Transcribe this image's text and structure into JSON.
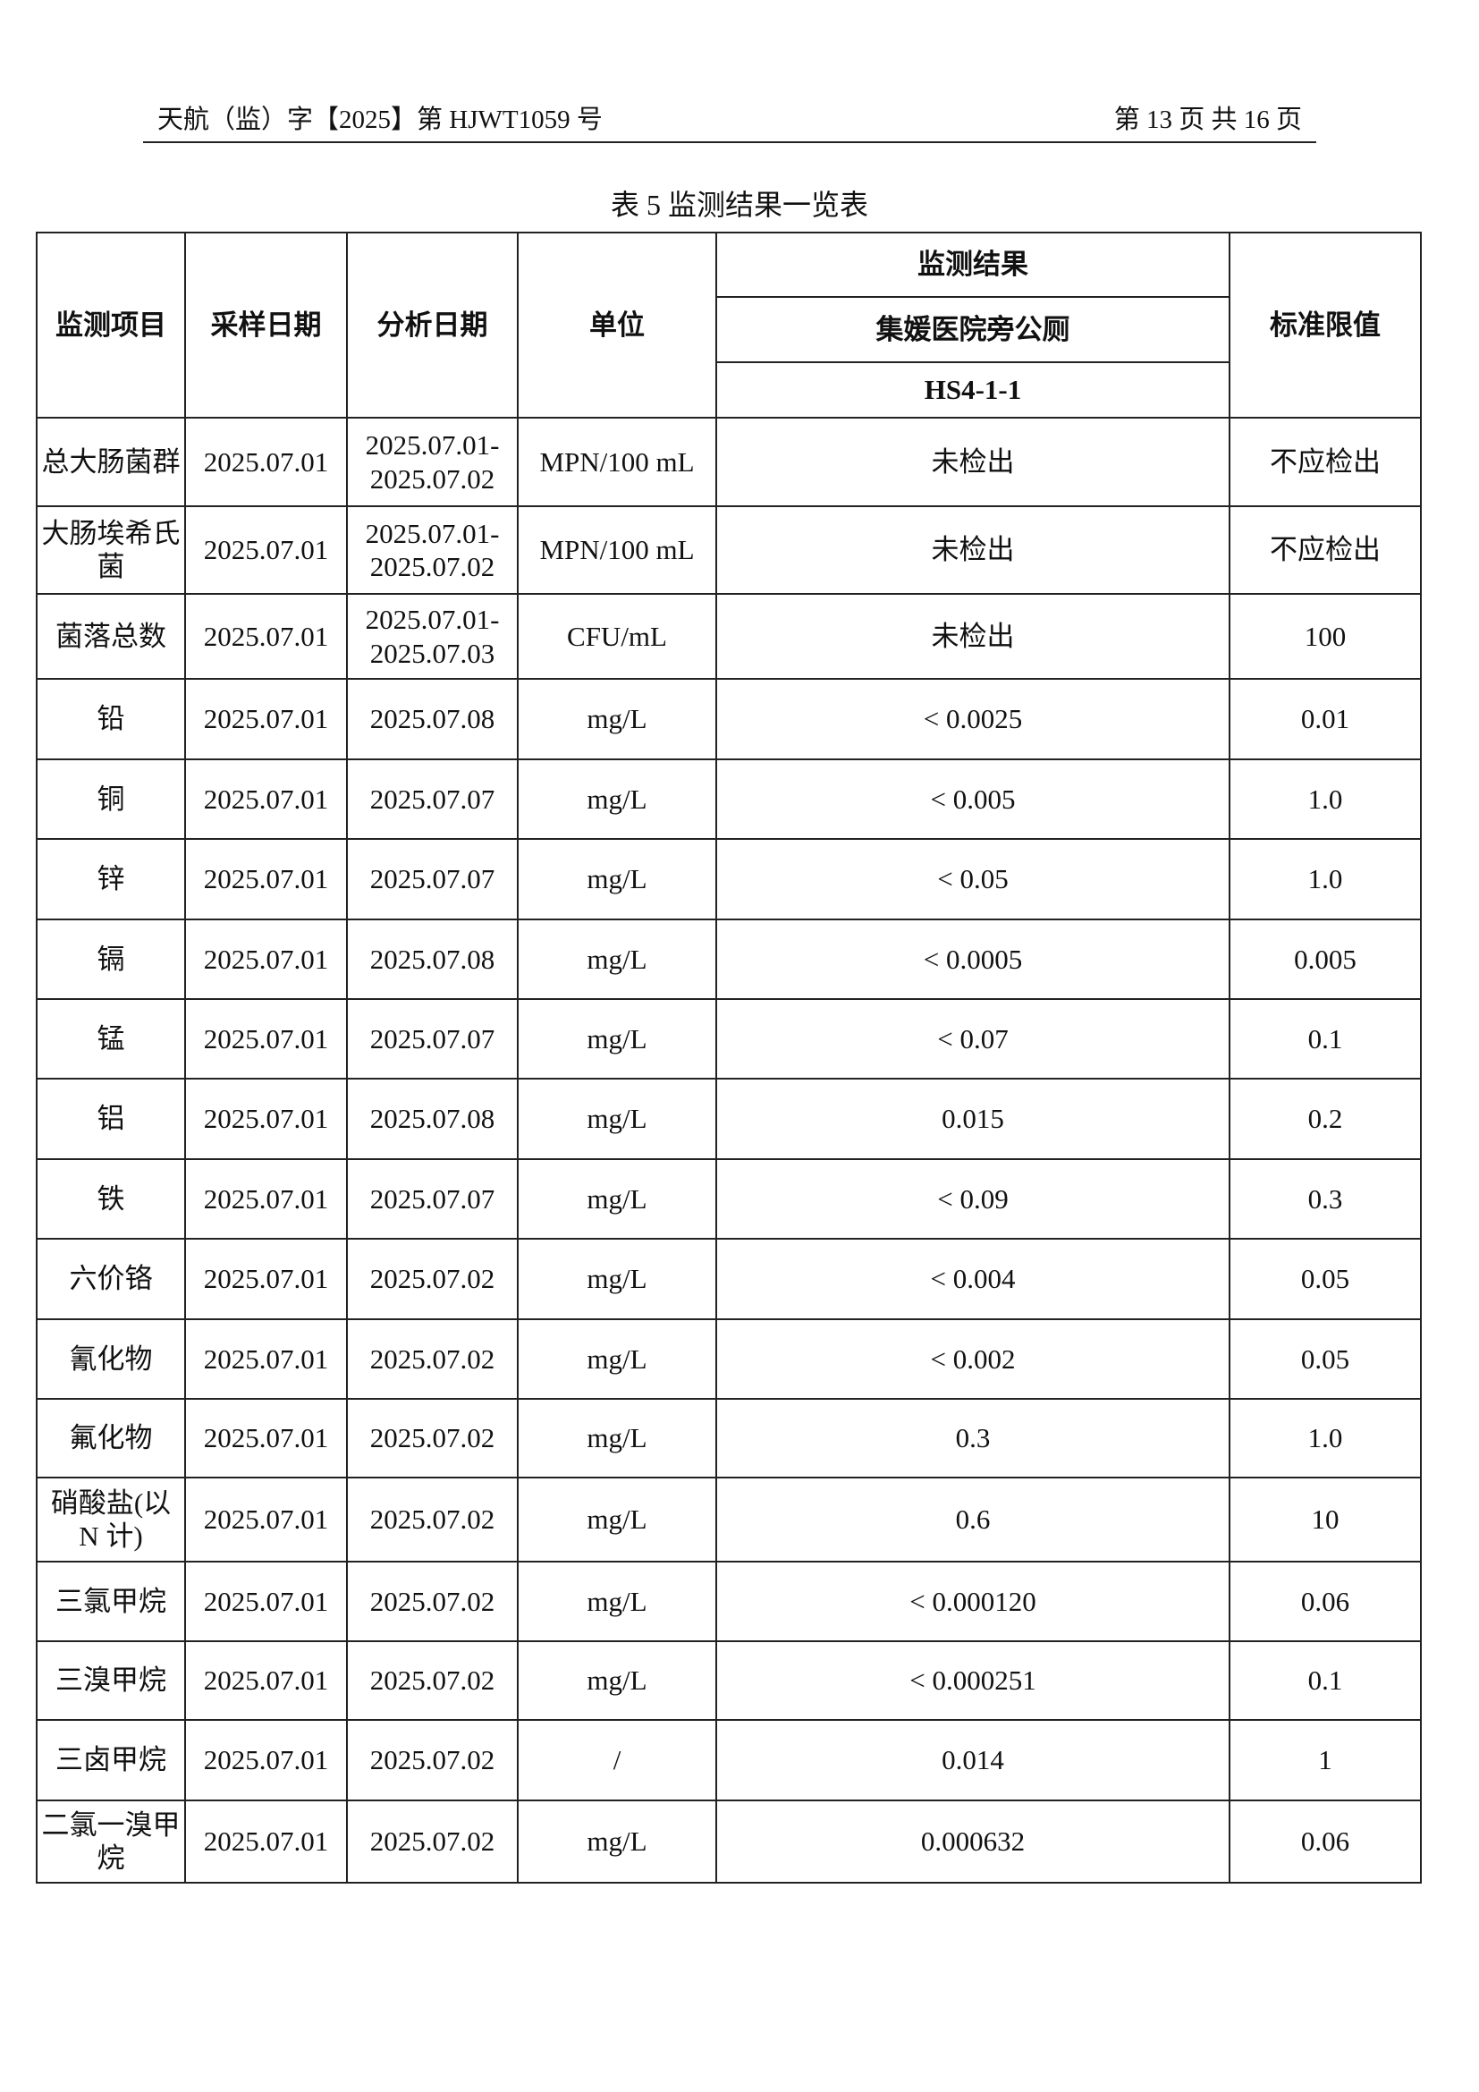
{
  "header": {
    "doc_number": "天航（监）字【2025】第 HJWT1059 号",
    "page_info": "第 13 页 共 16 页"
  },
  "table_title": "表 5  监测结果一览表",
  "table": {
    "columns": {
      "item": "监测项目",
      "sample_date": "采样日期",
      "analysis_date": "分析日期",
      "unit": "单位",
      "result_group": "监测结果",
      "location": "集媛医院旁公厕",
      "sample_id": "HS4-1-1",
      "limit": "标准限值"
    },
    "rows": [
      {
        "item": "总大肠菌群",
        "sample_date": "2025.07.01",
        "analysis_date": "2025.07.01-2025.07.02",
        "unit": "MPN/100 mL",
        "result": "未检出",
        "limit": "不应检出"
      },
      {
        "item": "大肠埃希氏菌",
        "sample_date": "2025.07.01",
        "analysis_date": "2025.07.01-2025.07.02",
        "unit": "MPN/100 mL",
        "result": "未检出",
        "limit": "不应检出"
      },
      {
        "item": "菌落总数",
        "sample_date": "2025.07.01",
        "analysis_date": "2025.07.01-2025.07.03",
        "unit": "CFU/mL",
        "result": "未检出",
        "limit": "100"
      },
      {
        "item": "铅",
        "sample_date": "2025.07.01",
        "analysis_date": "2025.07.08",
        "unit": "mg/L",
        "result": "< 0.0025",
        "limit": "0.01"
      },
      {
        "item": "铜",
        "sample_date": "2025.07.01",
        "analysis_date": "2025.07.07",
        "unit": "mg/L",
        "result": "< 0.005",
        "limit": "1.0"
      },
      {
        "item": "锌",
        "sample_date": "2025.07.01",
        "analysis_date": "2025.07.07",
        "unit": "mg/L",
        "result": "< 0.05",
        "limit": "1.0"
      },
      {
        "item": "镉",
        "sample_date": "2025.07.01",
        "analysis_date": "2025.07.08",
        "unit": "mg/L",
        "result": "< 0.0005",
        "limit": "0.005"
      },
      {
        "item": "锰",
        "sample_date": "2025.07.01",
        "analysis_date": "2025.07.07",
        "unit": "mg/L",
        "result": "< 0.07",
        "limit": "0.1"
      },
      {
        "item": "铝",
        "sample_date": "2025.07.01",
        "analysis_date": "2025.07.08",
        "unit": "mg/L",
        "result": "0.015",
        "limit": "0.2"
      },
      {
        "item": "铁",
        "sample_date": "2025.07.01",
        "analysis_date": "2025.07.07",
        "unit": "mg/L",
        "result": "< 0.09",
        "limit": "0.3"
      },
      {
        "item": "六价铬",
        "sample_date": "2025.07.01",
        "analysis_date": "2025.07.02",
        "unit": "mg/L",
        "result": "< 0.004",
        "limit": "0.05"
      },
      {
        "item": "氰化物",
        "sample_date": "2025.07.01",
        "analysis_date": "2025.07.02",
        "unit": "mg/L",
        "result": "< 0.002",
        "limit": "0.05"
      },
      {
        "item": "氟化物",
        "sample_date": "2025.07.01",
        "analysis_date": "2025.07.02",
        "unit": "mg/L",
        "result": "0.3",
        "limit": "1.0"
      },
      {
        "item": "硝酸盐(以 N 计)",
        "sample_date": "2025.07.01",
        "analysis_date": "2025.07.02",
        "unit": "mg/L",
        "result": "0.6",
        "limit": "10"
      },
      {
        "item": "三氯甲烷",
        "sample_date": "2025.07.01",
        "analysis_date": "2025.07.02",
        "unit": "mg/L",
        "result": "< 0.000120",
        "limit": "0.06"
      },
      {
        "item": "三溴甲烷",
        "sample_date": "2025.07.01",
        "analysis_date": "2025.07.02",
        "unit": "mg/L",
        "result": "< 0.000251",
        "limit": "0.1"
      },
      {
        "item": "三卤甲烷",
        "sample_date": "2025.07.01",
        "analysis_date": "2025.07.02",
        "unit": "/",
        "result": "0.014",
        "limit": "1"
      },
      {
        "item": "二氯一溴甲烷",
        "sample_date": "2025.07.01",
        "analysis_date": "2025.07.02",
        "unit": "mg/L",
        "result": "0.000632",
        "limit": "0.06"
      }
    ]
  }
}
